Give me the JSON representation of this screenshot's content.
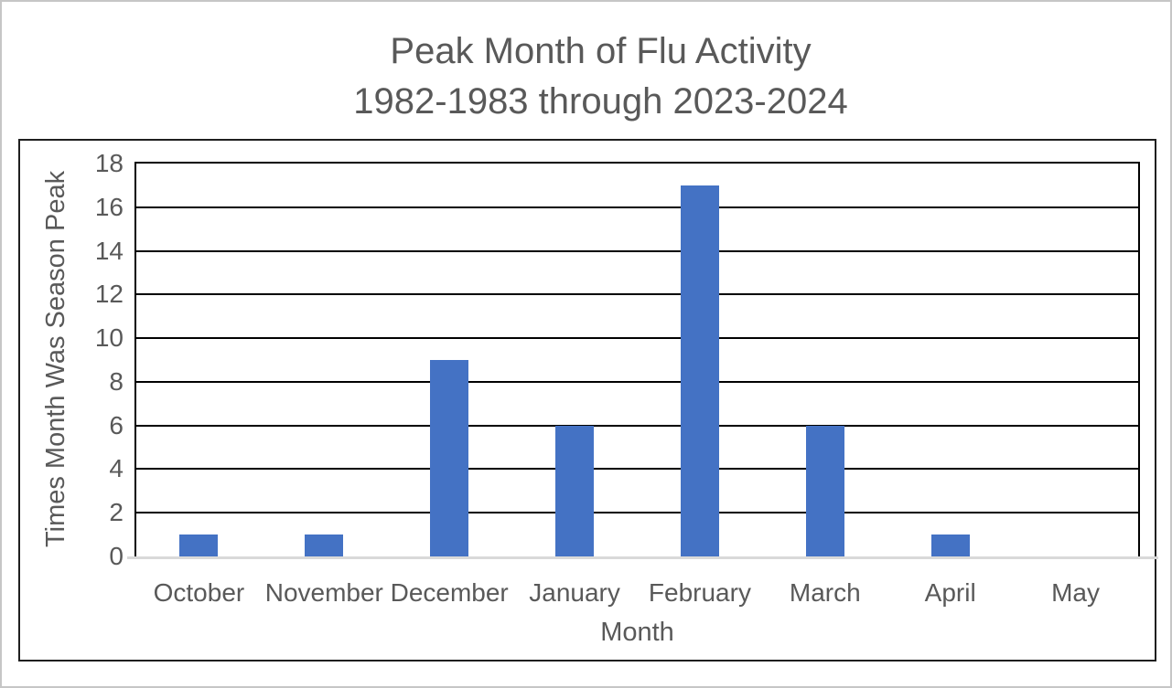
{
  "title": {
    "line1": "Peak Month of Flu Activity",
    "line2": "1982-1983 through 2023-2024"
  },
  "chart_data": {
    "type": "bar",
    "title": "Peak Month of Flu Activity 1982-1983 through 2023-2024",
    "categories": [
      "October",
      "November",
      "December",
      "January",
      "February",
      "March",
      "April",
      "May"
    ],
    "values": [
      1,
      1,
      9,
      6,
      17,
      6,
      1,
      0
    ],
    "xlabel": "Month",
    "ylabel": "Times Month Was Season Peak",
    "ylim": [
      0,
      18
    ],
    "yticks": [
      0,
      2,
      4,
      6,
      8,
      10,
      12,
      14,
      16,
      18
    ],
    "grid": "horizontal",
    "legend": false,
    "bar_color": "#4472C4"
  },
  "colors": {
    "bar": "#4472C4",
    "label_text": "#595959",
    "gridline": "#000000",
    "plot_border": "#000000",
    "frame_border": "#1F1F1F",
    "axis_line": "#D9D9D9",
    "page_border": "#C6C6C6",
    "background": "#FFFFFF"
  }
}
